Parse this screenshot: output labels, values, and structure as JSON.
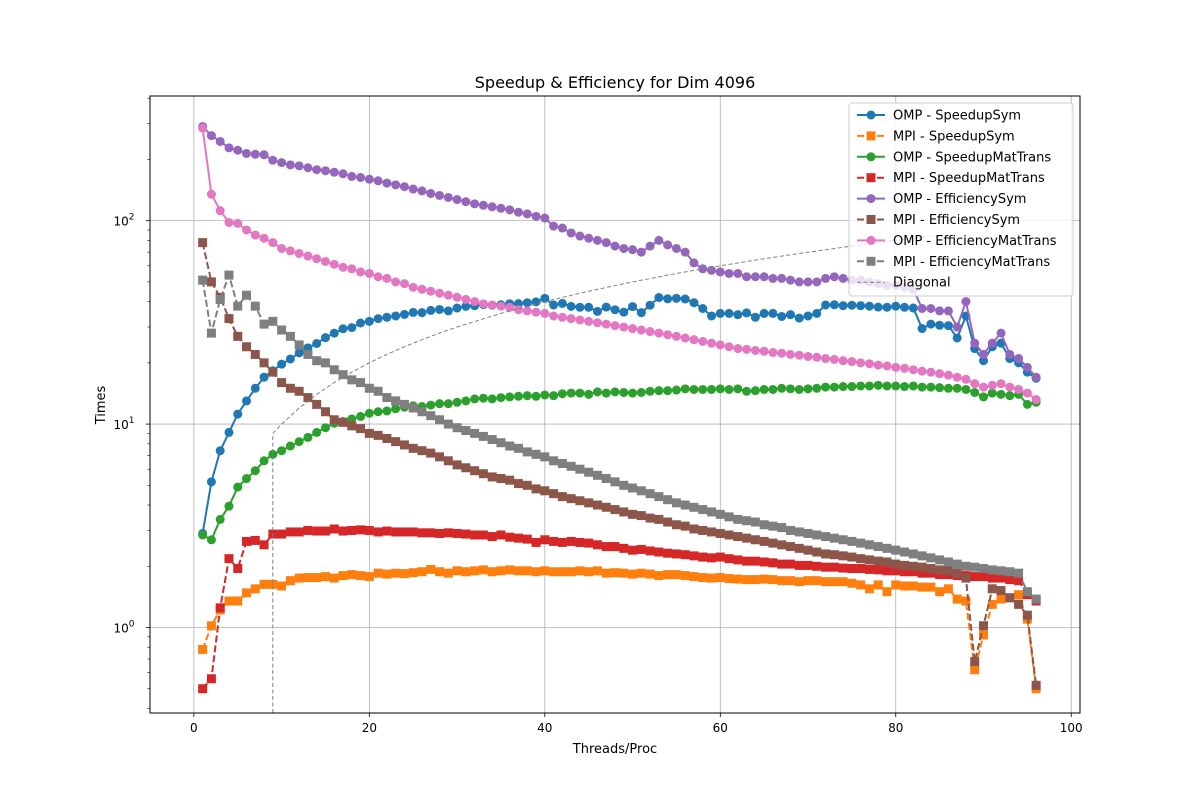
{
  "chart_data": {
    "type": "line",
    "title": "Speedup & Efficiency for Dim 4096",
    "xlabel": "Threads/Proc",
    "ylabel": "Times",
    "xlim": [
      -5,
      101
    ],
    "ylim": [
      0.38,
      410
    ],
    "yscale": "log",
    "grid": true,
    "legend_position": "upper-right",
    "x_ticks": [
      0,
      20,
      40,
      60,
      80,
      100
    ],
    "y_ticks": [
      {
        "value": 1,
        "label": "10^0"
      },
      {
        "value": 10,
        "label": "10^1"
      },
      {
        "value": 100,
        "label": "10^2"
      }
    ],
    "x": [
      1,
      2,
      3,
      4,
      5,
      6,
      7,
      8,
      9,
      10,
      11,
      12,
      13,
      14,
      15,
      16,
      17,
      18,
      19,
      20,
      21,
      22,
      23,
      24,
      25,
      26,
      27,
      28,
      29,
      30,
      31,
      32,
      33,
      34,
      35,
      36,
      37,
      38,
      39,
      40,
      41,
      42,
      43,
      44,
      45,
      46,
      47,
      48,
      49,
      50,
      51,
      52,
      53,
      54,
      55,
      56,
      57,
      58,
      59,
      60,
      61,
      62,
      63,
      64,
      65,
      66,
      67,
      68,
      69,
      70,
      71,
      72,
      73,
      74,
      75,
      76,
      77,
      78,
      79,
      80,
      81,
      82,
      83,
      84,
      85,
      86,
      87,
      88,
      89,
      90,
      91,
      92,
      93,
      94,
      95,
      96
    ],
    "series": [
      {
        "name": "OMP - SpeedupSym",
        "color": "#1f77b4",
        "marker": "circle",
        "linestyle": "solid",
        "values": [
          2.9,
          5.2,
          7.4,
          9.1,
          11.2,
          13.0,
          15.0,
          17.0,
          18.3,
          19.7,
          20.9,
          22.4,
          23.7,
          24.9,
          26.6,
          28.0,
          29.4,
          29.8,
          31.4,
          32.0,
          33.0,
          33.5,
          34.0,
          34.6,
          35.4,
          35.3,
          36.2,
          36.6,
          36.0,
          37.2,
          37.9,
          38.2,
          38.7,
          38.4,
          38.6,
          39.0,
          39.1,
          39.5,
          39.9,
          41.5,
          38.5,
          39.2,
          37.9,
          37.5,
          37.5,
          35.8,
          37.6,
          36.5,
          35.5,
          37.8,
          35.3,
          38.4,
          41.9,
          41.3,
          41.5,
          41.2,
          39.5,
          37.0,
          34.0,
          35.0,
          35.0,
          34.5,
          35.2,
          33.5,
          35.0,
          35.0,
          33.8,
          34.5,
          33.2,
          34.0,
          35.0,
          38.5,
          38.6,
          38.2,
          38.4,
          38.2,
          38.0,
          37.6,
          37.5,
          38.0,
          37.5,
          37.2,
          29.5,
          31.0,
          30.6,
          30.5,
          26.5,
          34.0,
          23.5,
          20.5,
          24.0,
          25.0,
          21.0,
          20.0,
          18.0,
          16.8
        ]
      },
      {
        "name": "MPI - SpeedupSym",
        "color": "#ff7f0e",
        "marker": "square",
        "linestyle": "dashed",
        "values": [
          0.78,
          1.02,
          1.22,
          1.35,
          1.35,
          1.48,
          1.55,
          1.63,
          1.63,
          1.6,
          1.7,
          1.75,
          1.76,
          1.76,
          1.78,
          1.75,
          1.8,
          1.82,
          1.8,
          1.78,
          1.85,
          1.83,
          1.85,
          1.84,
          1.86,
          1.88,
          1.93,
          1.88,
          1.85,
          1.9,
          1.88,
          1.9,
          1.92,
          1.88,
          1.9,
          1.92,
          1.9,
          1.9,
          1.88,
          1.9,
          1.88,
          1.88,
          1.88,
          1.9,
          1.88,
          1.9,
          1.85,
          1.86,
          1.85,
          1.83,
          1.85,
          1.83,
          1.8,
          1.82,
          1.82,
          1.8,
          1.78,
          1.76,
          1.75,
          1.76,
          1.74,
          1.73,
          1.72,
          1.72,
          1.73,
          1.72,
          1.7,
          1.7,
          1.68,
          1.7,
          1.7,
          1.68,
          1.68,
          1.68,
          1.65,
          1.62,
          1.55,
          1.62,
          1.5,
          1.62,
          1.6,
          1.6,
          1.58,
          1.58,
          1.5,
          1.55,
          1.38,
          1.35,
          0.62,
          0.92,
          1.3,
          1.38,
          1.4,
          1.45,
          1.1,
          0.5
        ]
      },
      {
        "name": "OMP - SpeedupMatTrans",
        "color": "#2ca02c",
        "marker": "circle",
        "linestyle": "solid",
        "values": [
          2.85,
          2.7,
          3.4,
          3.95,
          4.9,
          5.4,
          5.9,
          6.6,
          7.1,
          7.4,
          7.8,
          8.2,
          8.6,
          9.1,
          9.6,
          10.1,
          10.3,
          10.6,
          10.9,
          11.3,
          11.5,
          11.6,
          11.9,
          12.1,
          12.3,
          12.2,
          12.4,
          12.6,
          12.6,
          12.8,
          13.0,
          13.3,
          13.4,
          13.3,
          13.5,
          13.6,
          13.7,
          13.8,
          13.7,
          13.9,
          13.8,
          14.1,
          14.2,
          14.2,
          14.0,
          14.4,
          14.2,
          14.4,
          14.3,
          14.2,
          14.3,
          14.5,
          14.6,
          14.6,
          14.7,
          14.9,
          14.8,
          14.8,
          14.8,
          14.9,
          14.8,
          14.9,
          14.5,
          14.6,
          14.8,
          14.8,
          15.0,
          14.9,
          14.8,
          14.9,
          15.0,
          15.2,
          15.2,
          15.3,
          15.3,
          15.4,
          15.4,
          15.5,
          15.4,
          15.4,
          15.3,
          15.4,
          15.2,
          15.2,
          15.1,
          15.0,
          15.0,
          14.8,
          14.3,
          13.6,
          14.2,
          14.0,
          13.8,
          14.0,
          12.5,
          12.8
        ]
      },
      {
        "name": "MPI - SpeedupMatTrans",
        "color": "#d62728",
        "marker": "square",
        "linestyle": "dashed",
        "values": [
          0.5,
          0.56,
          1.25,
          2.18,
          1.95,
          2.65,
          2.68,
          2.55,
          2.88,
          2.88,
          2.95,
          2.95,
          3.0,
          2.98,
          2.98,
          3.05,
          2.98,
          3.0,
          3.02,
          3.0,
          2.95,
          2.98,
          2.95,
          2.95,
          2.95,
          2.92,
          2.92,
          2.9,
          2.92,
          2.9,
          2.88,
          2.85,
          2.85,
          2.8,
          2.85,
          2.78,
          2.75,
          2.72,
          2.62,
          2.7,
          2.65,
          2.62,
          2.65,
          2.62,
          2.6,
          2.55,
          2.5,
          2.5,
          2.45,
          2.4,
          2.42,
          2.38,
          2.35,
          2.32,
          2.3,
          2.28,
          2.25,
          2.22,
          2.2,
          2.22,
          2.18,
          2.15,
          2.12,
          2.12,
          2.1,
          2.08,
          2.05,
          2.05,
          2.02,
          2.02,
          2.0,
          1.98,
          1.98,
          1.96,
          1.95,
          1.95,
          1.93,
          1.92,
          1.9,
          1.9,
          1.88,
          1.88,
          1.85,
          1.85,
          1.82,
          1.82,
          1.8,
          1.8,
          1.78,
          1.78,
          1.75,
          1.75,
          1.72,
          1.7,
          1.45,
          1.35
        ]
      },
      {
        "name": "OMP - EfficiencySym",
        "color": "#9467bd",
        "marker": "circle",
        "linestyle": "solid",
        "values": [
          290,
          262,
          245,
          228,
          222,
          214,
          212,
          211,
          198,
          193,
          188,
          186,
          182,
          178,
          176,
          173,
          170,
          165,
          163,
          160,
          157,
          153,
          150,
          147,
          143,
          140,
          136,
          133,
          130,
          127,
          124,
          121,
          119,
          117,
          115,
          113,
          110,
          108,
          105,
          103,
          94,
          92,
          87,
          84,
          82,
          80,
          78,
          75,
          73,
          72,
          70,
          75,
          80,
          76,
          73,
          70,
          62,
          58,
          57,
          56,
          55,
          55,
          53,
          53,
          53,
          52,
          52,
          51,
          50,
          50,
          50,
          52,
          53,
          52,
          51,
          51,
          50,
          49,
          48,
          48,
          47,
          46,
          37,
          37,
          36,
          36,
          30,
          40,
          25,
          22,
          25,
          28,
          22,
          21,
          19,
          17
        ]
      },
      {
        "name": "MPI - EfficiencySym",
        "color": "#8c564b",
        "marker": "square",
        "linestyle": "dashed",
        "values": [
          78,
          50,
          42,
          33,
          27,
          24,
          22,
          20,
          18,
          16,
          15,
          14.5,
          13.5,
          12.5,
          11.5,
          10.5,
          10.2,
          9.8,
          9.5,
          9.0,
          8.8,
          8.5,
          8.2,
          7.9,
          7.6,
          7.4,
          7.2,
          6.9,
          6.6,
          6.3,
          6.1,
          5.9,
          5.7,
          5.5,
          5.4,
          5.3,
          5.1,
          5.0,
          4.8,
          4.7,
          4.55,
          4.4,
          4.3,
          4.2,
          4.1,
          4.0,
          3.9,
          3.8,
          3.7,
          3.6,
          3.55,
          3.45,
          3.4,
          3.3,
          3.2,
          3.15,
          3.05,
          3.0,
          2.95,
          2.9,
          2.85,
          2.8,
          2.75,
          2.7,
          2.65,
          2.6,
          2.55,
          2.5,
          2.45,
          2.4,
          2.35,
          2.3,
          2.28,
          2.25,
          2.22,
          2.18,
          2.15,
          2.12,
          2.1,
          2.05,
          2.02,
          2.0,
          1.98,
          1.95,
          1.92,
          1.9,
          1.85,
          1.75,
          0.68,
          1.02,
          1.55,
          1.52,
          1.4,
          1.3,
          1.15,
          0.52
        ]
      },
      {
        "name": "OMP - EfficiencyMatTrans",
        "color": "#e377c2",
        "marker": "circle",
        "linestyle": "solid",
        "values": [
          285,
          135,
          112,
          98,
          97,
          90,
          85,
          82,
          78,
          73,
          71,
          69,
          67,
          65,
          63,
          61,
          59,
          58,
          56,
          55,
          53,
          52,
          50,
          49,
          47,
          46,
          45,
          44,
          43,
          42,
          41,
          40,
          39,
          38.5,
          38,
          37.5,
          36.5,
          36,
          35.5,
          35,
          34,
          33.5,
          33,
          32.5,
          32,
          31.5,
          31,
          30.5,
          30,
          29.5,
          29,
          28.5,
          28,
          27.5,
          27,
          26.5,
          26,
          25.5,
          25,
          24.5,
          24,
          23.5,
          23.3,
          23,
          22.8,
          22.5,
          22.3,
          22,
          21.8,
          21.5,
          21.3,
          21,
          20.8,
          20.5,
          20.3,
          20,
          19.8,
          19.5,
          19.3,
          19,
          18.8,
          18.5,
          18.2,
          18,
          17.7,
          17.4,
          17,
          16.6,
          15.8,
          15.2,
          15.5,
          15.8,
          15.2,
          14.8,
          14.2,
          13.2
        ]
      },
      {
        "name": "MPI - EfficiencyMatTrans",
        "color": "#7f7f7f",
        "marker": "square",
        "linestyle": "dashed",
        "values": [
          51,
          28,
          41,
          54,
          38,
          43,
          38,
          31,
          32,
          29,
          27,
          24.5,
          22,
          20.5,
          20,
          18.5,
          17.5,
          16.5,
          16,
          15,
          14.5,
          13.5,
          13,
          12.5,
          12,
          11.5,
          11,
          10.5,
          10,
          9.6,
          9.3,
          9,
          8.7,
          8.4,
          8.1,
          7.8,
          7.6,
          7.3,
          7.1,
          6.9,
          6.6,
          6.4,
          6.2,
          6.0,
          5.8,
          5.6,
          5.4,
          5.2,
          5.0,
          4.85,
          4.7,
          4.55,
          4.4,
          4.25,
          4.1,
          4.0,
          3.9,
          3.8,
          3.7,
          3.6,
          3.5,
          3.4,
          3.35,
          3.3,
          3.2,
          3.15,
          3.1,
          3.0,
          2.95,
          2.9,
          2.85,
          2.8,
          2.75,
          2.7,
          2.65,
          2.6,
          2.55,
          2.5,
          2.45,
          2.4,
          2.35,
          2.3,
          2.25,
          2.2,
          2.15,
          2.1,
          2.05,
          2.0,
          1.98,
          1.95,
          1.92,
          1.9,
          1.88,
          1.85,
          1.5,
          1.38
        ]
      },
      {
        "name": "Diagonal",
        "color": "#808080",
        "marker": "none",
        "linestyle": "dashed-thin",
        "x": [
          9,
          9,
          10,
          12,
          14,
          16,
          18,
          20,
          22,
          24,
          26,
          28,
          30,
          35,
          40,
          45,
          50,
          55,
          60,
          65,
          70,
          75,
          80,
          85
        ],
        "values": [
          0.38,
          9,
          10,
          12,
          14,
          16,
          18,
          20,
          22,
          24,
          26,
          28,
          30,
          35,
          40,
          45,
          50,
          55,
          60,
          65,
          70,
          75,
          80,
          85
        ]
      }
    ]
  }
}
